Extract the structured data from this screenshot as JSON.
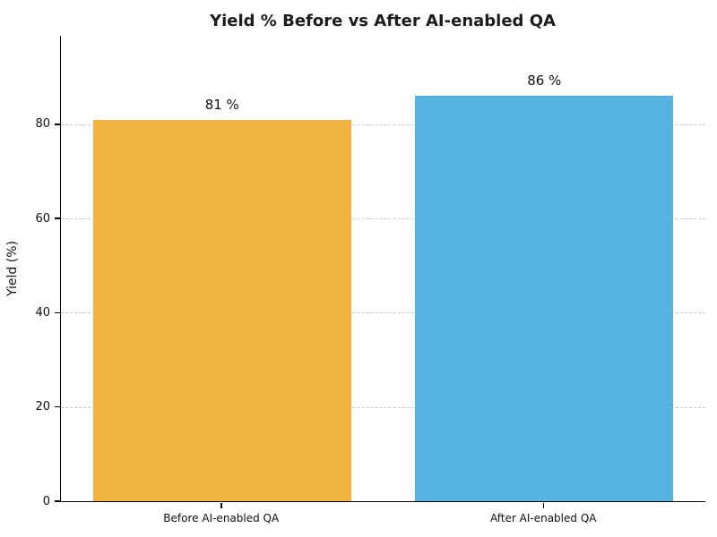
{
  "chart_data": {
    "type": "bar",
    "title": "Yield % Before vs After AI-enabled QA",
    "categories": [
      "Before AI-enabled QA",
      "After AI-enabled QA"
    ],
    "values": [
      81,
      86
    ],
    "bar_value_labels": [
      "81 %",
      "86 %"
    ],
    "bar_colors": [
      "#F2B442",
      "#56B2E0"
    ],
    "xlabel": "",
    "ylabel": "Yield (%)",
    "ylim": [
      0,
      98.8
    ],
    "yticks": [
      0,
      20,
      40,
      60,
      80
    ],
    "grid": "horizontal-dashed",
    "gridline_color": "#c9c9c9",
    "legend": "none",
    "bar_width_fraction": 0.4,
    "bar_centers_fraction": [
      0.25,
      0.75
    ]
  }
}
